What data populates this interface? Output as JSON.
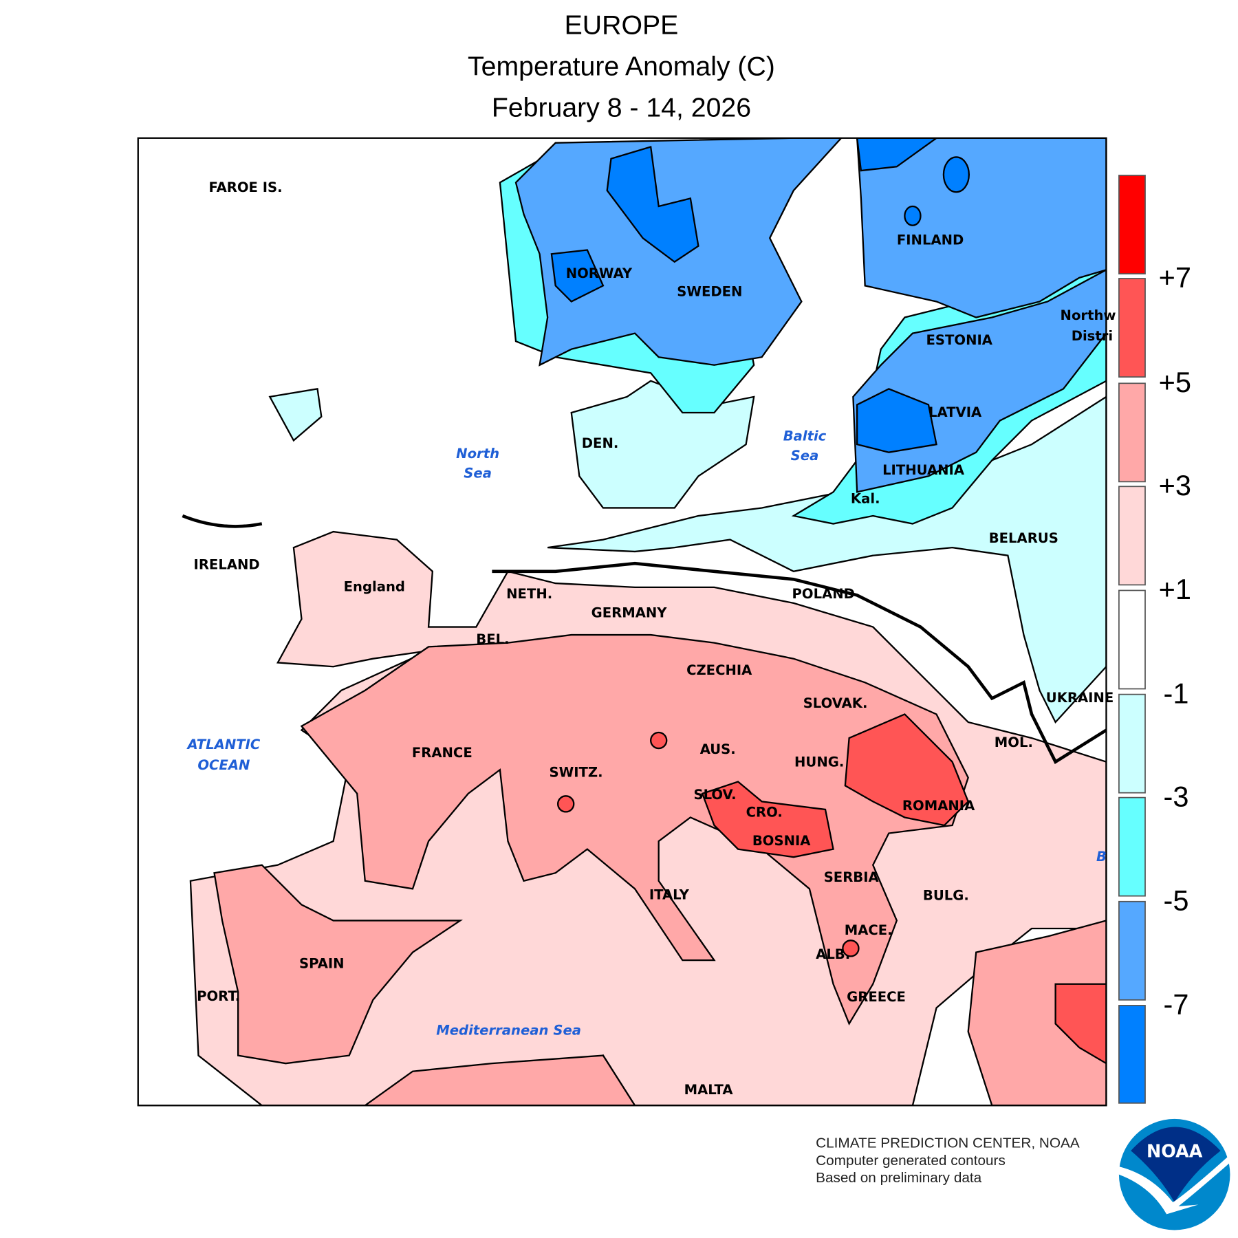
{
  "title": {
    "line1": "EUROPE",
    "line2": "Temperature Anomaly (C)",
    "line3": "February 8 - 14, 2026"
  },
  "colorbar": {
    "labels": [
      "+7",
      "+5",
      "+3",
      "+1",
      "-1",
      "-3",
      "-5",
      "-7"
    ],
    "colors": [
      "#FF0000",
      "#FF5555",
      "#FFA8A8",
      "#FFD8D8",
      "#FFFFFF",
      "#CCFFFF",
      "#66FFFF",
      "#55A8FF",
      "#0080FF"
    ]
  },
  "countries": [
    "FAROE IS.",
    "NORWAY",
    "SWEDEN",
    "FINLAND",
    "ESTONIA",
    "LATVIA",
    "LITHUANIA",
    "Kal.",
    "BELARUS",
    "Northw",
    "Distri",
    "IRELAND",
    "England",
    "DEN.",
    "NETH.",
    "GERMANY",
    "POLAND",
    "BEL.",
    "CZECHIA",
    "SLOVAK.",
    "UKRAINE",
    "MOL.",
    "FRANCE",
    "SWITZ.",
    "AUS.",
    "HUNG.",
    "SLOV.",
    "CRO.",
    "BOSNIA",
    "ROMANIA",
    "SERBIA",
    "BULG.",
    "MACE.",
    "ALB.",
    "GREECE",
    "ITALY",
    "SPAIN",
    "PORT.",
    "MALTA"
  ],
  "seas": {
    "north": [
      "North",
      "Sea"
    ],
    "baltic": [
      "Baltic",
      "Sea"
    ],
    "atlantic": [
      "ATLANTIC",
      "OCEAN"
    ],
    "med": "Mediterranean Sea",
    "black": "B"
  },
  "footer": {
    "line1": "CLIMATE PREDICTION CENTER, NOAA",
    "line2": "Computer generated contours",
    "line3": "Based on preliminary data"
  },
  "logo": "NOAA"
}
